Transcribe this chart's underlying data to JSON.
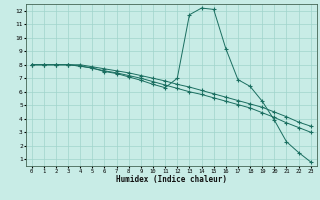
{
  "xlabel": "Humidex (Indice chaleur)",
  "bg_color": "#c8ece6",
  "grid_color": "#a0d4cc",
  "line_color": "#1a6e60",
  "xlim": [
    -0.5,
    23.5
  ],
  "ylim": [
    0.5,
    12.5
  ],
  "xticks": [
    0,
    1,
    2,
    3,
    4,
    5,
    6,
    7,
    8,
    9,
    10,
    11,
    12,
    13,
    14,
    15,
    16,
    17,
    18,
    19,
    20,
    21,
    22,
    23
  ],
  "yticks": [
    1,
    2,
    3,
    4,
    5,
    6,
    7,
    8,
    9,
    10,
    11,
    12
  ],
  "line1_x": [
    0,
    1,
    2,
    3,
    4,
    5,
    6,
    7,
    8,
    9,
    10,
    11,
    12,
    13,
    14,
    15,
    16,
    17,
    18,
    19,
    20,
    21,
    22,
    23
  ],
  "line1_y": [
    8,
    8,
    8,
    8,
    8,
    7.85,
    7.7,
    7.55,
    7.4,
    7.2,
    7.0,
    6.8,
    6.55,
    6.35,
    6.1,
    5.85,
    5.6,
    5.35,
    5.1,
    4.85,
    4.5,
    4.15,
    3.75,
    3.45
  ],
  "line2_x": [
    0,
    1,
    2,
    3,
    4,
    5,
    6,
    7,
    8,
    9,
    10,
    11,
    12,
    13,
    14,
    15,
    16,
    17,
    18,
    19,
    20,
    21,
    22,
    23
  ],
  "line2_y": [
    8,
    8,
    8,
    8,
    7.9,
    7.75,
    7.55,
    7.4,
    7.2,
    7.0,
    6.75,
    6.5,
    6.25,
    6.0,
    5.8,
    5.55,
    5.3,
    5.05,
    4.8,
    4.45,
    4.1,
    3.7,
    3.35,
    3.0
  ],
  "line3_x": [
    0,
    1,
    2,
    3,
    4,
    5,
    6,
    7,
    8,
    9,
    10,
    11,
    12,
    13,
    14,
    15,
    16,
    17,
    18,
    19,
    20,
    21,
    22,
    23
  ],
  "line3_y": [
    8,
    8,
    8,
    8,
    7.9,
    7.75,
    7.5,
    7.35,
    7.1,
    6.85,
    6.55,
    6.3,
    7.0,
    11.7,
    12.2,
    12.1,
    9.2,
    6.9,
    6.4,
    5.3,
    3.9,
    2.3,
    1.5,
    0.8
  ]
}
